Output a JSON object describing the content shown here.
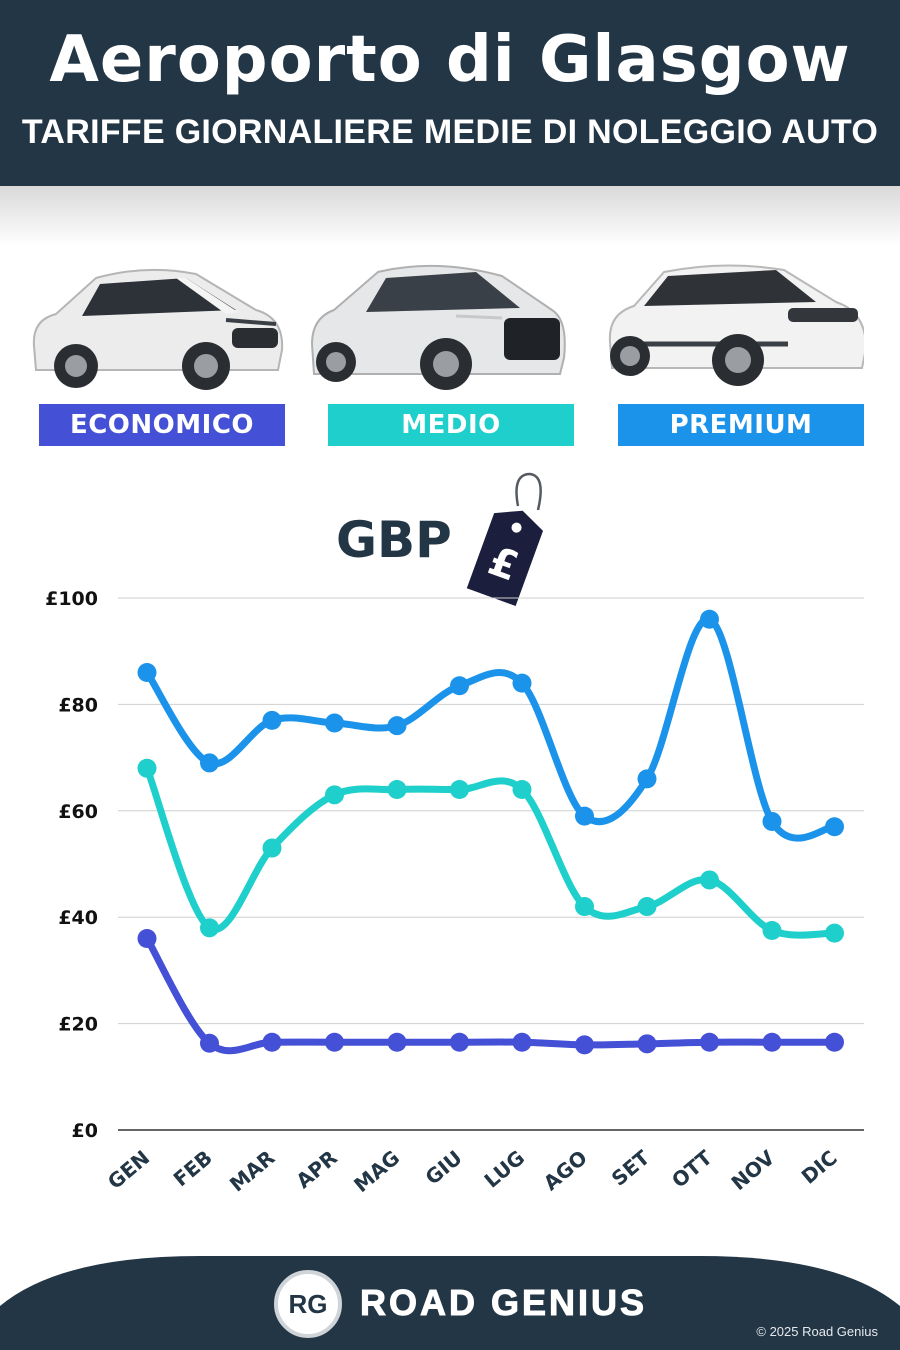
{
  "header": {
    "title": "Aeroporto di Glasgow",
    "subtitle": "TARIFFE GIORNALIERE MEDIE DI NOLEGGIO AUTO"
  },
  "categories": [
    {
      "label": "ECONOMICO",
      "color": "#4450d6"
    },
    {
      "label": "MEDIO",
      "color": "#1ecfcb"
    },
    {
      "label": "PREMIUM",
      "color": "#1c93ea"
    }
  ],
  "currency": {
    "label": "GBP",
    "symbol": "£"
  },
  "chart_data": {
    "type": "line",
    "categories": [
      "GEN",
      "FEB",
      "MAR",
      "APR",
      "MAG",
      "GIU",
      "LUG",
      "AGO",
      "SET",
      "OTT",
      "NOV",
      "DIC"
    ],
    "y_tick_labels": [
      "£0",
      "£20",
      "£40",
      "£60",
      "£80",
      "£100"
    ],
    "y_ticks": [
      0,
      20,
      40,
      60,
      80,
      100
    ],
    "ylim": [
      0,
      100
    ],
    "grid": true,
    "series": [
      {
        "name": "PREMIUM",
        "color": "#1c93ea",
        "values": [
          86,
          69,
          77,
          76.5,
          76,
          83.5,
          84,
          59,
          66,
          96,
          58,
          57
        ]
      },
      {
        "name": "MEDIO",
        "color": "#1ecfcb",
        "values": [
          68,
          38,
          53,
          63,
          64,
          64,
          64,
          42,
          42,
          47,
          37.5,
          37
        ]
      },
      {
        "name": "ECONOMICO",
        "color": "#4450d6",
        "values": [
          36,
          16.3,
          16.5,
          16.5,
          16.5,
          16.5,
          16.5,
          16,
          16.2,
          16.5,
          16.5,
          16.5
        ]
      }
    ]
  },
  "footer": {
    "logo_text": "RG",
    "brand": "ROAD GENIUS",
    "copyright": "© 2025 Road Genius"
  }
}
